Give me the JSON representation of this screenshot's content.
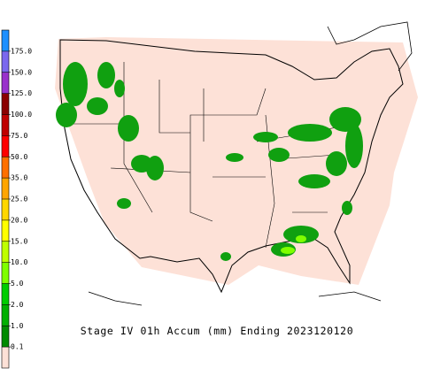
{
  "caption": "Stage IV 01h Accum (mm) Ending 2023120120",
  "legend": {
    "labels": [
      "0.1",
      "1.0",
      "2.0",
      "5.0",
      "10.0",
      "15.0",
      "20.0",
      "25.0",
      "35.0",
      "50.0",
      "75.0",
      "100.0",
      "125.0",
      "150.0",
      "175.0"
    ],
    "colors": [
      "#fde1d7",
      "#008b00",
      "#00b000",
      "#00cd00",
      "#7fff00",
      "#bfff00",
      "#ffff00",
      "#ffd700",
      "#ffa500",
      "#ff7000",
      "#ff0000",
      "#c00000",
      "#8b0000",
      "#9932cc",
      "#7b68ee",
      "#1e90ff"
    ]
  }
}
